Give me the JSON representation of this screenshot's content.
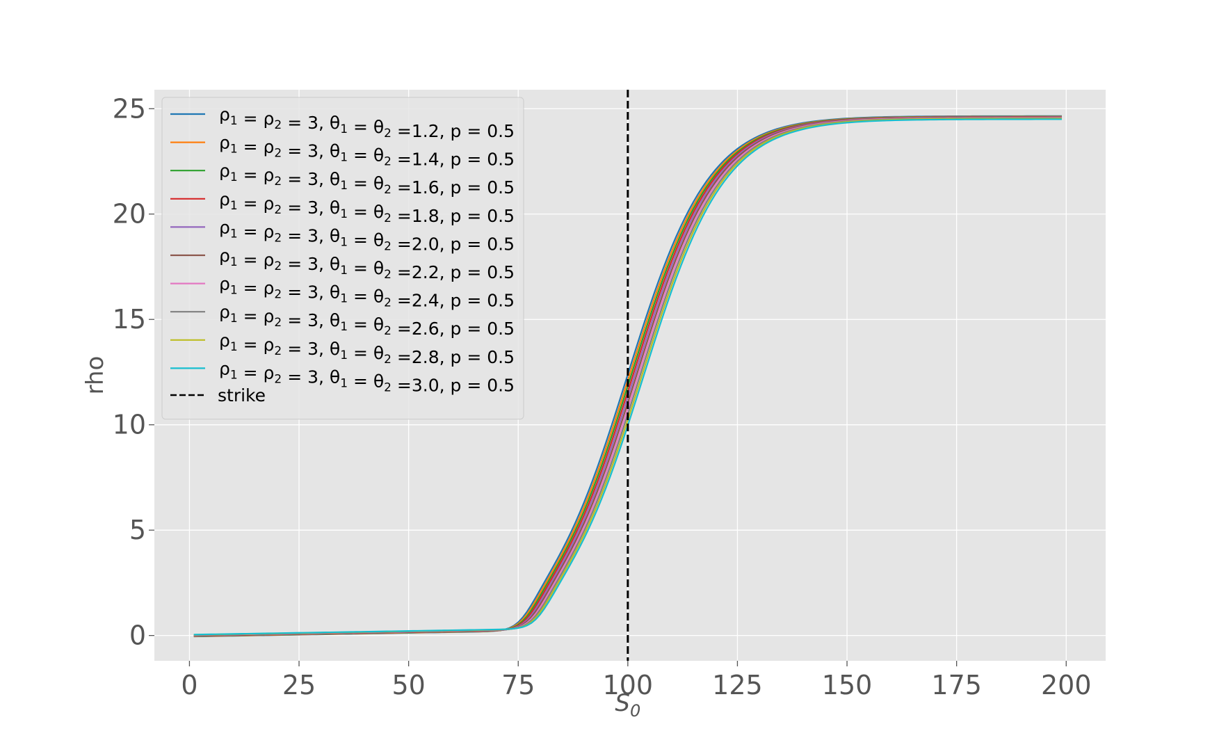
{
  "chart_data": {
    "type": "line",
    "title": "",
    "xlabel": "S",
    "xlabel_sub": "0",
    "ylabel": "rho",
    "xlim": [
      -8,
      209
    ],
    "ylim": [
      -1.2,
      25.9
    ],
    "xticks": [
      0,
      25,
      50,
      75,
      100,
      125,
      150,
      175,
      200
    ],
    "yticks": [
      0,
      5,
      10,
      15,
      20,
      25
    ],
    "xtick_labels": [
      "0",
      "25",
      "50",
      "75",
      "100",
      "125",
      "150",
      "175",
      "200"
    ],
    "ytick_labels": [
      "0",
      "5",
      "10",
      "15",
      "20",
      "25"
    ],
    "grid": true,
    "legend_position": "top-left",
    "x_range": [
      1,
      199
    ],
    "strike": 100,
    "strike_label": "strike",
    "series": [
      {
        "name_pre": "ρ",
        "name_mid": " = ρ",
        "name_mid2": " = 3, θ",
        "name_mid3": " = θ",
        "theta": "=1.2, p = 0.5",
        "color": "#1f77b4",
        "shift": -1.6,
        "top": 24.65,
        "base": -0.05
      },
      {
        "name_pre": "ρ",
        "name_mid": " = ρ",
        "name_mid2": " = 3, θ",
        "name_mid3": " = θ",
        "theta": "=1.4, p = 0.5",
        "color": "#ff7f0e",
        "shift": -1.2,
        "top": 24.63,
        "base": -0.04
      },
      {
        "name_pre": "ρ",
        "name_mid": " = ρ",
        "name_mid2": " = 3, θ",
        "name_mid3": " = θ",
        "theta": "=1.6, p = 0.5",
        "color": "#2ca02c",
        "shift": -0.8,
        "top": 24.62,
        "base": -0.03
      },
      {
        "name_pre": "ρ",
        "name_mid": " = ρ",
        "name_mid2": " = 3, θ",
        "name_mid3": " = θ",
        "theta": "=1.8, p = 0.5",
        "color": "#d62728",
        "shift": -0.4,
        "top": 24.61,
        "base": -0.02
      },
      {
        "name_pre": "ρ",
        "name_mid": " = ρ",
        "name_mid2": " = 3, θ",
        "name_mid3": " = θ",
        "theta": "=2.0, p = 0.5",
        "color": "#9467bd",
        "shift": 0.0,
        "top": 24.6,
        "base": -0.01
      },
      {
        "name_pre": "ρ",
        "name_mid": " = ρ",
        "name_mid2": " = 3, θ",
        "name_mid3": " = θ",
        "theta": "=2.2, p = 0.5",
        "color": "#8c564b",
        "shift": 0.4,
        "top": 24.59,
        "base": 0.0
      },
      {
        "name_pre": "ρ",
        "name_mid": " = ρ",
        "name_mid2": " = 3, θ",
        "name_mid3": " = θ",
        "theta": "=2.4, p = 0.5",
        "color": "#e377c2",
        "shift": 0.8,
        "top": 24.57,
        "base": 0.01
      },
      {
        "name_pre": "ρ",
        "name_mid": " = ρ",
        "name_mid2": " = 3, θ",
        "name_mid3": " = θ",
        "theta": "=2.6, p = 0.5",
        "color": "#7f7f7f",
        "shift": 1.2,
        "top": 24.55,
        "base": 0.02
      },
      {
        "name_pre": "ρ",
        "name_mid": " = ρ",
        "name_mid2": " = 3, θ",
        "name_mid3": " = θ",
        "theta": "=2.8, p = 0.5",
        "color": "#bcbd22",
        "shift": 1.6,
        "top": 24.53,
        "base": 0.03
      },
      {
        "name_pre": "ρ",
        "name_mid": " = ρ",
        "name_mid2": " = 3, θ",
        "name_mid3": " = θ",
        "theta": "=3.0, p = 0.5",
        "color": "#17becf",
        "shift": 2.0,
        "top": 24.5,
        "base": 0.04
      }
    ],
    "subscripts": [
      "1",
      "2",
      "1",
      "2"
    ],
    "colors": {
      "plot_bg": "#e5e5e5",
      "grid": "#ffffff",
      "tick_label": "#555555",
      "strike_line": "#000000",
      "legend_bg": "#e5e5e5",
      "legend_border": "#cccccc"
    }
  }
}
